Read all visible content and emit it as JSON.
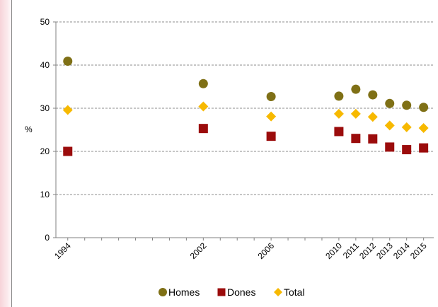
{
  "chart_data": {
    "type": "scatter",
    "title": "",
    "xlabel": "",
    "ylabel": "%",
    "ylim": [
      0,
      50
    ],
    "yticks": [
      0,
      10,
      20,
      30,
      40,
      50
    ],
    "x": [
      1994,
      2002,
      2006,
      2010,
      2011,
      2012,
      2013,
      2014,
      2015
    ],
    "x_tick_labels": [
      "1994",
      "2002",
      "2006",
      "2010",
      "2011",
      "2012",
      "2013",
      "2014",
      "2015"
    ],
    "grid": true,
    "legend_position": "bottom",
    "series": [
      {
        "name": "Homes",
        "marker": "circle",
        "color": "#7f7016",
        "values": [
          40.9,
          35.7,
          32.7,
          32.8,
          34.4,
          33.1,
          31.1,
          30.7,
          30.2
        ]
      },
      {
        "name": "Dones",
        "marker": "square",
        "color": "#9b0c0c",
        "values": [
          20.0,
          25.3,
          23.5,
          24.6,
          23.0,
          22.9,
          21.0,
          20.4,
          20.8
        ]
      },
      {
        "name": "Total",
        "marker": "diamond",
        "color": "#f7b900",
        "values": [
          29.6,
          30.4,
          28.1,
          28.7,
          28.7,
          28.0,
          26.0,
          25.6,
          25.4
        ]
      }
    ]
  }
}
